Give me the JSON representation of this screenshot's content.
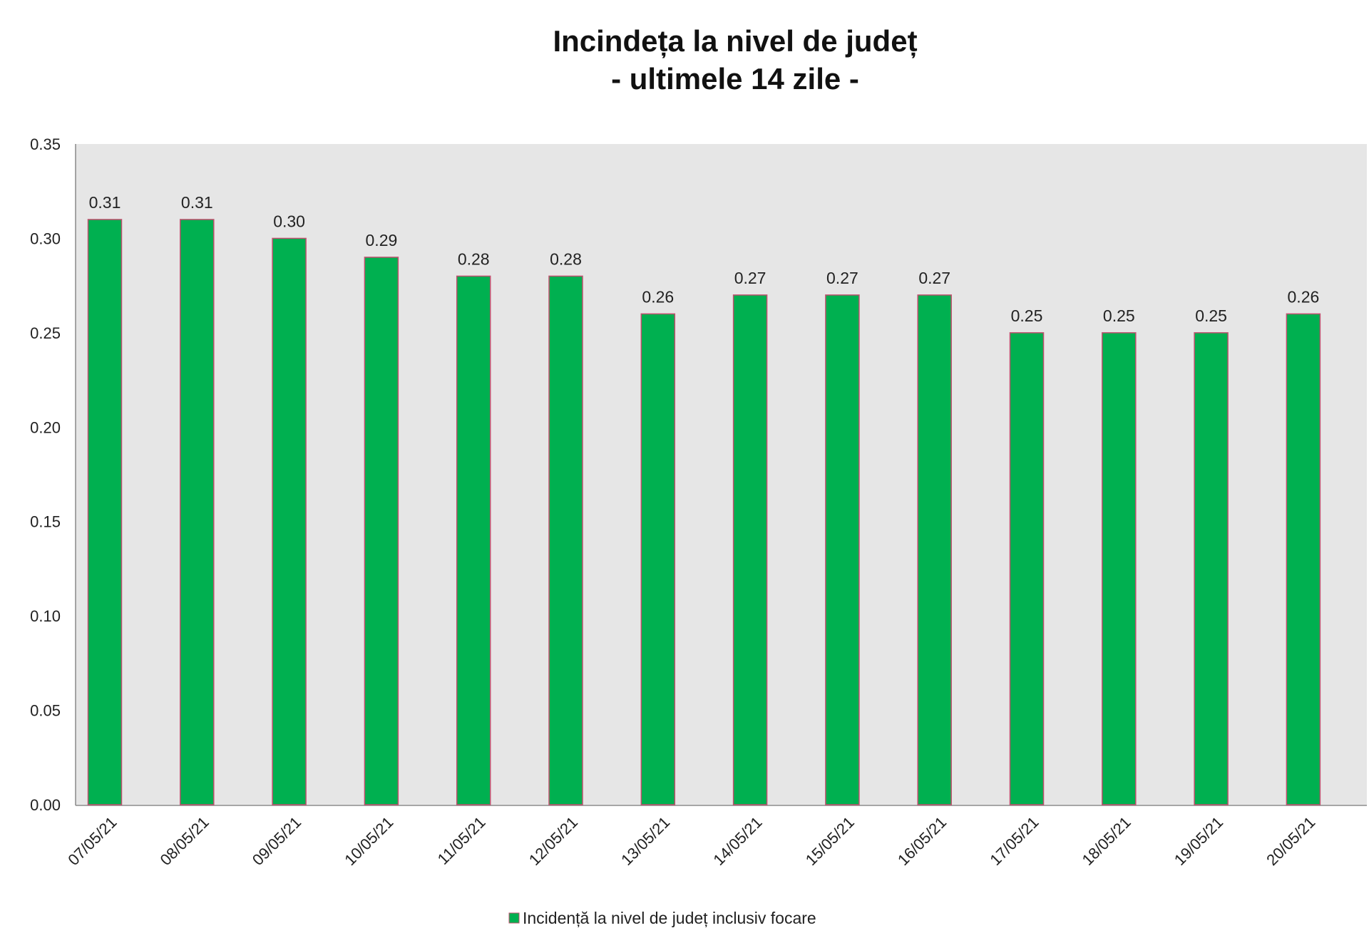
{
  "chart_data": {
    "type": "bar",
    "title": "Incindeța la nivel de județ",
    "subtitle": "- ultimele 14 zile -",
    "xlabel": "",
    "ylabel": "",
    "ylim": [
      0,
      0.35
    ],
    "yticks": [
      "0.00",
      "0.05",
      "0.10",
      "0.15",
      "0.20",
      "0.25",
      "0.30",
      "0.35"
    ],
    "categories": [
      "07/05/21",
      "08/05/21",
      "09/05/21",
      "10/05/21",
      "11/05/21",
      "12/05/21",
      "13/05/21",
      "14/05/21",
      "15/05/21",
      "16/05/21",
      "17/05/21",
      "18/05/21",
      "19/05/21",
      "20/05/21"
    ],
    "series": [
      {
        "name": "Incidență la nivel de județ inclusiv focare",
        "values": [
          0.31,
          0.31,
          0.3,
          0.29,
          0.28,
          0.28,
          0.26,
          0.27,
          0.27,
          0.27,
          0.25,
          0.25,
          0.25,
          0.26
        ],
        "color": "#00b050",
        "edge_color": "#c0506e"
      }
    ],
    "data_labels": [
      "0.31",
      "0.31",
      "0.30",
      "0.29",
      "0.28",
      "0.28",
      "0.26",
      "0.27",
      "0.27",
      "0.27",
      "0.25",
      "0.25",
      "0.25",
      "0.26"
    ],
    "grid": false,
    "plot_background": "#e6e6e6",
    "legend_position": "bottom-center"
  }
}
